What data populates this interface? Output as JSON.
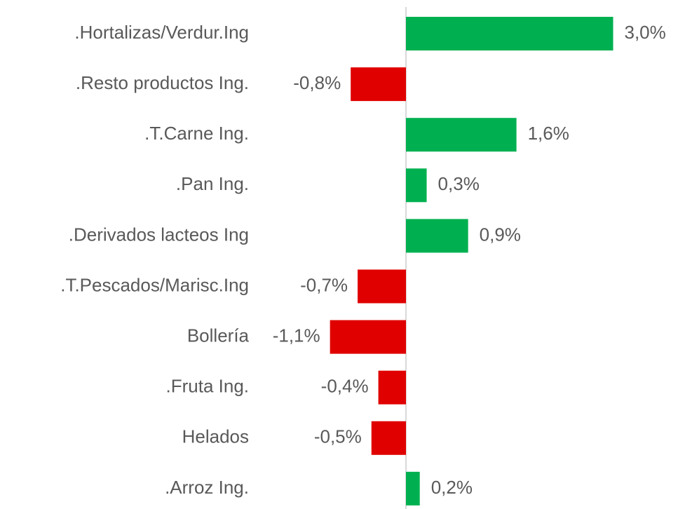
{
  "chart_data": {
    "type": "bar",
    "orientation": "horizontal",
    "categories": [
      ".Hortalizas/Verdur.Ing",
      ".Resto productos Ing.",
      ".T.Carne Ing.",
      ".Pan Ing.",
      ".Derivados lacteos Ing",
      ".T.Pescados/Marisc.Ing",
      "Bollería",
      ".Fruta Ing.",
      "Helados",
      ".Arroz Ing."
    ],
    "values": [
      3.0,
      -0.8,
      1.6,
      0.3,
      0.9,
      -0.7,
      -1.1,
      -0.4,
      -0.5,
      0.2
    ],
    "value_labels": [
      "3,0%",
      "-0,8%",
      "1,6%",
      "0,3%",
      "0,9%",
      "-0,7%",
      "-1,1%",
      "-0,4%",
      "-0,5%",
      "0,2%"
    ],
    "positive_color": "#00b050",
    "negative_color": "#e00000"
  }
}
